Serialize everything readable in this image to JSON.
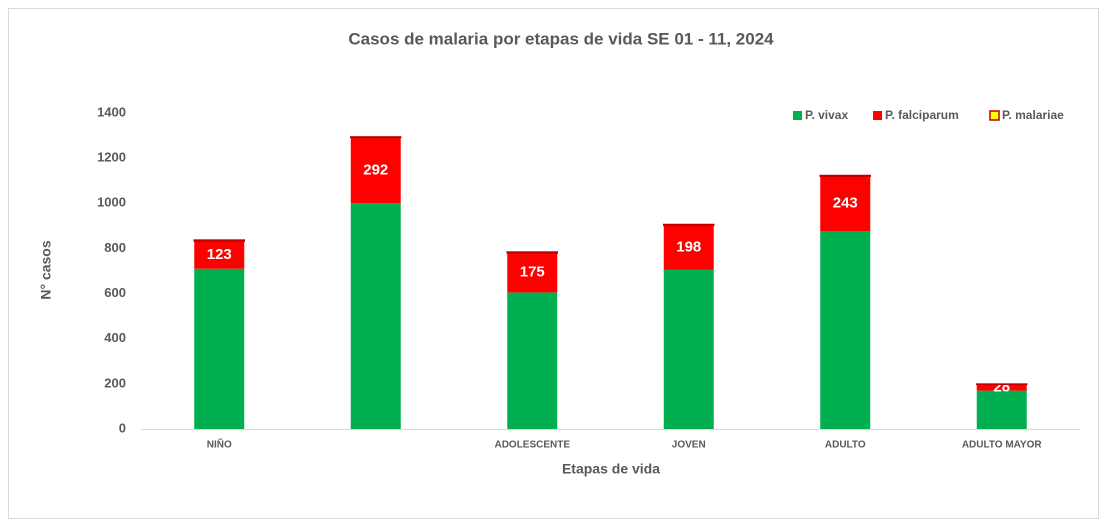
{
  "chart_data": {
    "type": "stacked_bar",
    "title": "Casos de malaria por etapas de vida SE 01 - 11, 2024",
    "x_label": "Etapas de vida",
    "y_label": "N° casos",
    "categories": [
      "NIÑO",
      null,
      "ADOLESCENTE",
      "JOVEN",
      "ADULTO",
      "ADULTO MAYOR"
    ],
    "series": [
      {
        "name": "P. vivax",
        "color": "#00b050",
        "values": [
          710,
          1000,
          605,
          705,
          877,
          170
        ]
      },
      {
        "name": "P. falciparum",
        "color": "#ff0000",
        "values": [
          123,
          292,
          175,
          198,
          243,
          28
        ],
        "show_value_labels": true
      },
      {
        "name": "P. malariae",
        "color": "#ffff00",
        "values": [
          4,
          2,
          4,
          3,
          3,
          1
        ]
      }
    ],
    "ylim": [
      0,
      1400
    ],
    "yticks": [
      0,
      200,
      400,
      600,
      800,
      1000,
      1200,
      1400
    ],
    "grid": false,
    "legend": "top-right"
  }
}
